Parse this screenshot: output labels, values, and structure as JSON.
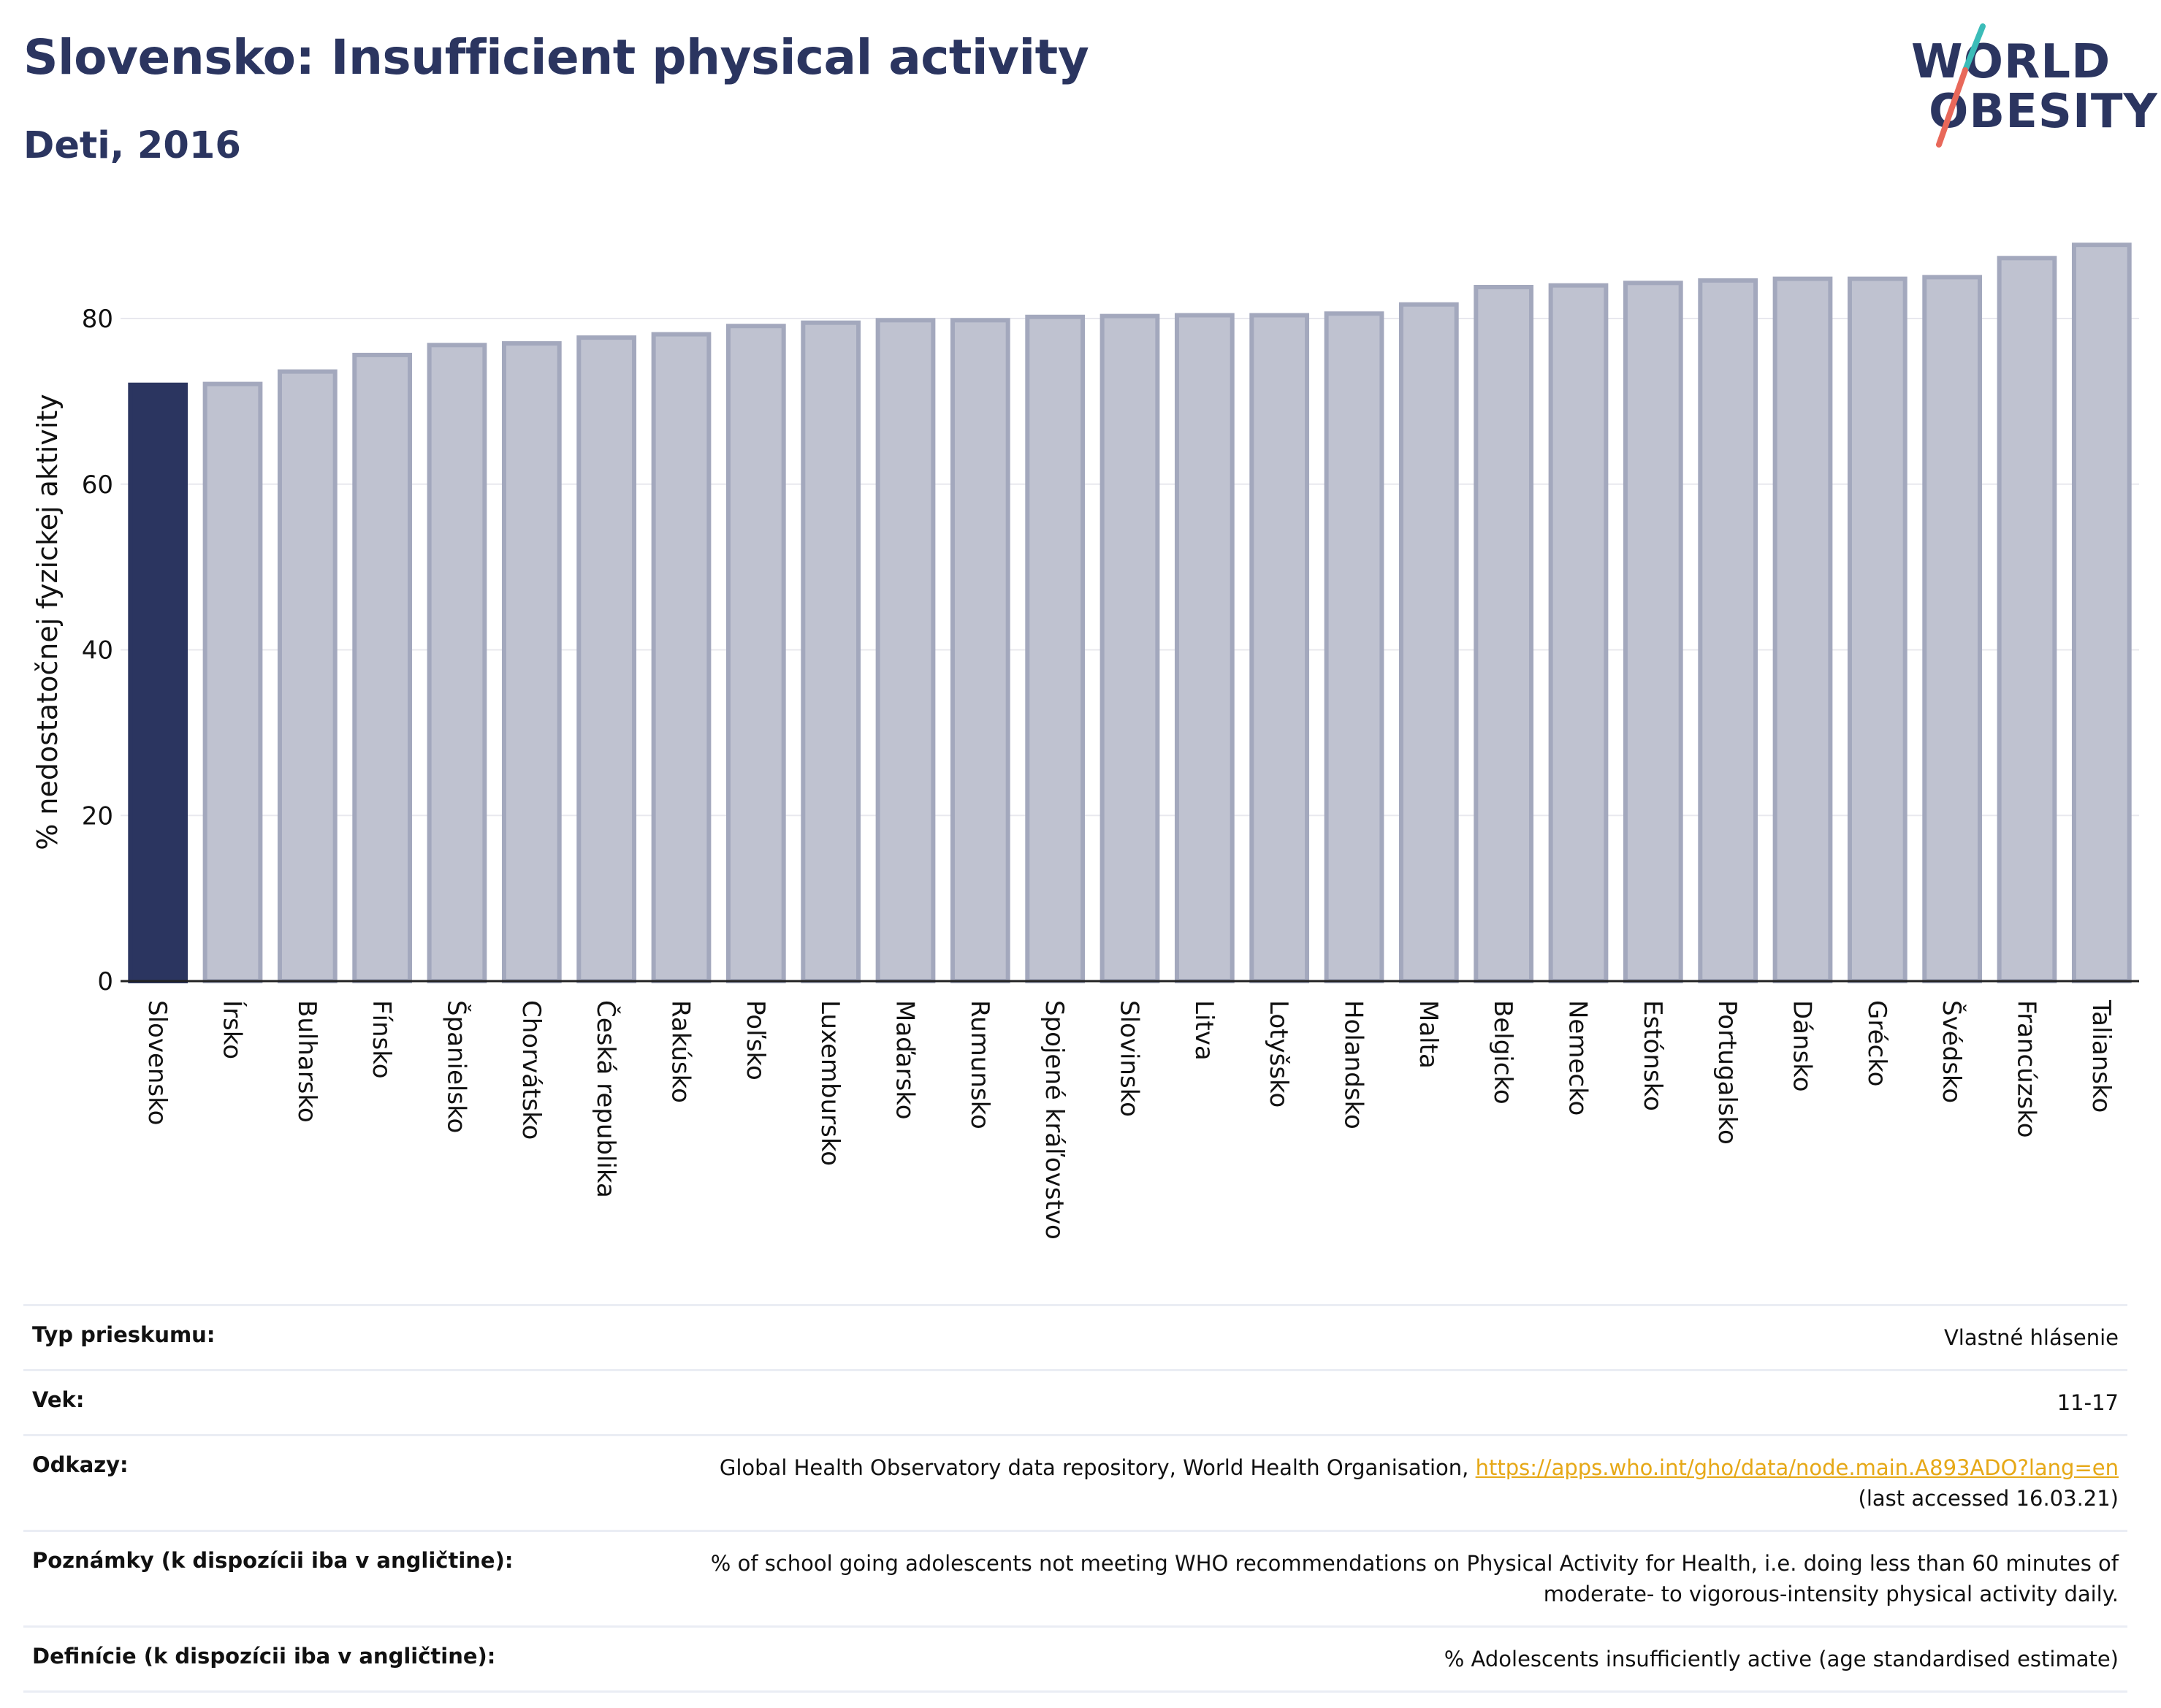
{
  "header": {
    "title": "Slovensko: Insufficient physical activity",
    "subtitle": "Deti, 2016"
  },
  "logo": {
    "line1": "WORLD",
    "line2": "OBESITY"
  },
  "colors": {
    "highlight_bar": "#2b3560",
    "bar_fill": "#bfc2d0",
    "bar_stroke": "#a3a8bd",
    "title": "#2b3560",
    "link": "#e6a817",
    "gridline": "#e8e8ee",
    "logo_teal": "#3bbcb8",
    "logo_coral": "#e8685a"
  },
  "chart_data": {
    "type": "bar",
    "ylabel": "% nedostatočnej fyzickej aktivity",
    "ylim": [
      0,
      92
    ],
    "yticks": [
      0,
      20,
      40,
      60,
      80
    ],
    "grid": true,
    "highlight_category": "Slovensko",
    "categories": [
      "Slovensko",
      "Írsko",
      "Bulharsko",
      "Fínsko",
      "Španielsko",
      "Chorvátsko",
      "Česká republika",
      "Rakúsko",
      "Poľsko",
      "Luxembursko",
      "Maďarsko",
      "Rumunsko",
      "Spojené kráľovstvo",
      "Slovinsko",
      "Litva",
      "Lotyšsko",
      "Holandsko",
      "Malta",
      "Belgicko",
      "Nemecko",
      "Estónsko",
      "Portugalsko",
      "Dánsko",
      "Grécko",
      "Švédsko",
      "Francúzsko",
      "Taliansko"
    ],
    "values": [
      72.0,
      72.1,
      73.6,
      75.6,
      76.8,
      77.0,
      77.7,
      78.1,
      79.1,
      79.5,
      79.8,
      79.8,
      80.2,
      80.3,
      80.4,
      80.4,
      80.6,
      81.7,
      83.8,
      84.0,
      84.3,
      84.6,
      84.8,
      84.8,
      85.0,
      87.3,
      88.9
    ]
  },
  "info_table": {
    "rows": [
      {
        "label": "Typ prieskumu:",
        "value": "Vlastné hlásenie"
      },
      {
        "label": "Vek:",
        "value": "11-17"
      },
      {
        "label": "Odkazy:",
        "value_prefix": "Global Health Observatory data repository, World Health Organisation, ",
        "link": "https://apps.who.int/gho/data/node.main.A893ADO?lang=en",
        "value_suffix": "(last accessed 16.03.21)"
      },
      {
        "label": "Poznámky (k dispozícii iba v angličtine):",
        "value": "% of school going adolescents not meeting WHO recommendations on Physical Activity for Health, i.e. doing less than 60 minutes of moderate- to vigorous-intensity physical activity daily."
      },
      {
        "label": "Definície (k dispozícii iba v angličtine):",
        "value": "% Adolescents insufficiently active (age standardised estimate)"
      }
    ]
  }
}
